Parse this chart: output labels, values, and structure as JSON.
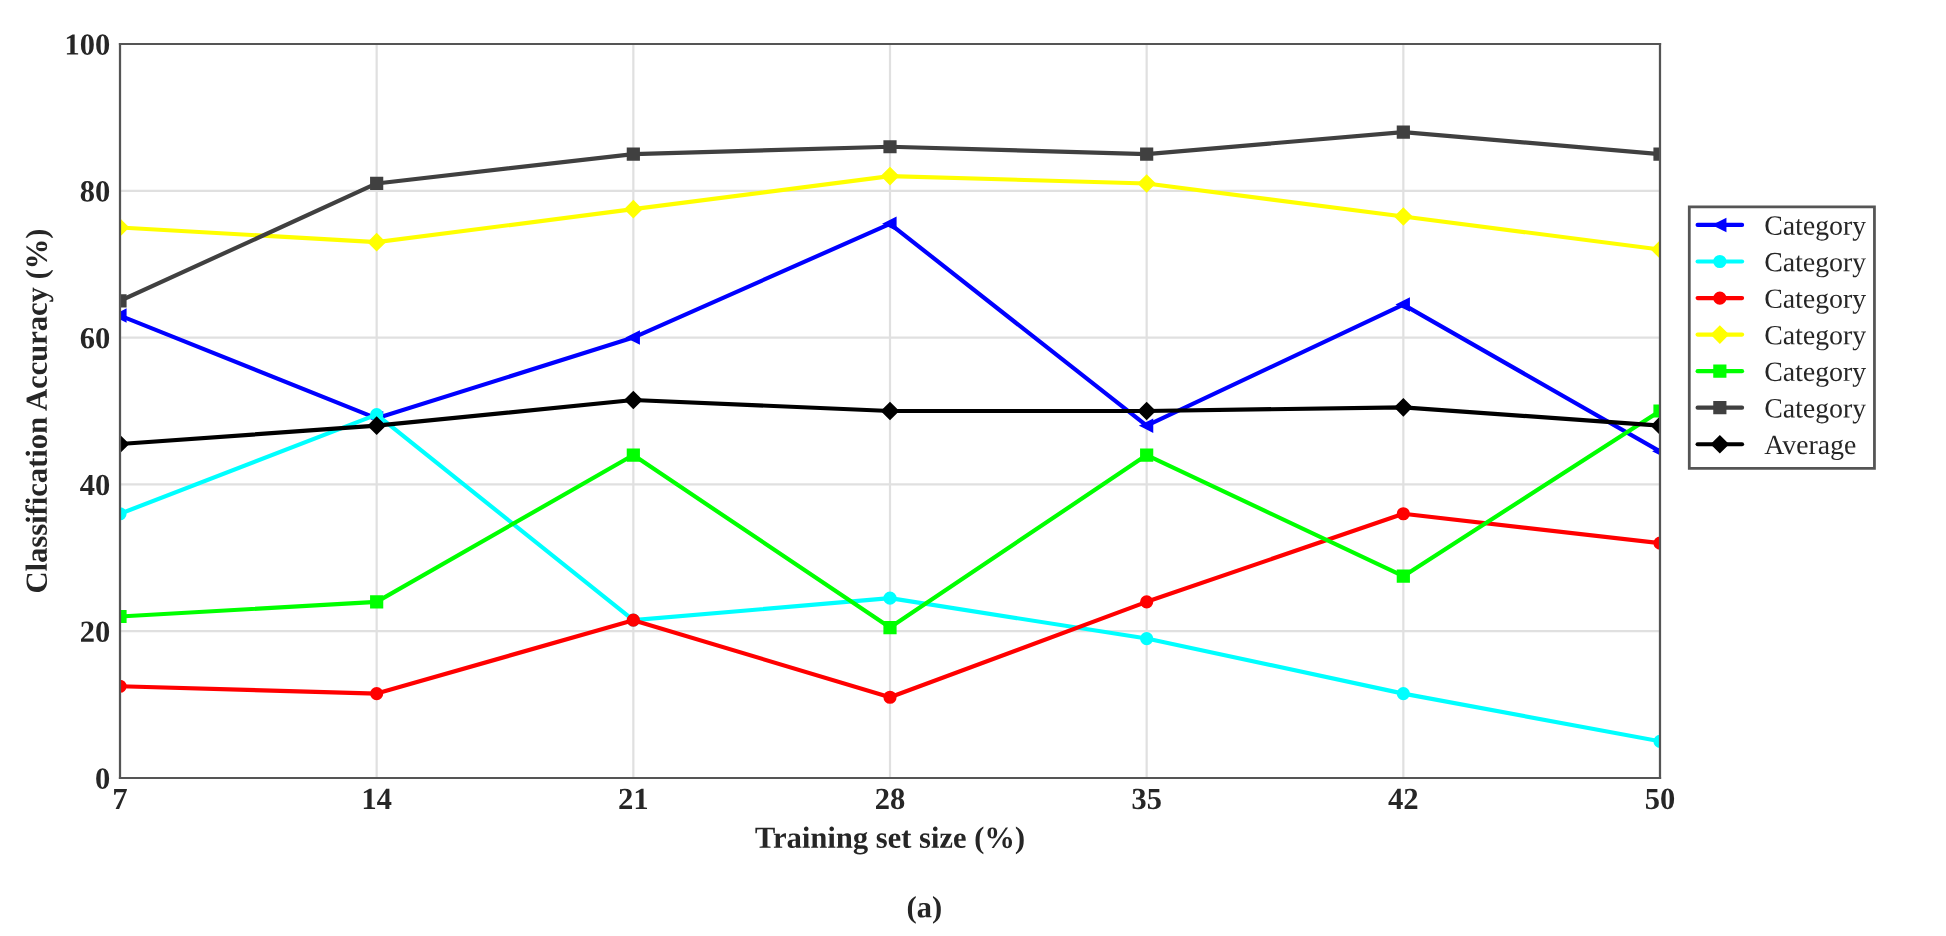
{
  "chart_data": {
    "type": "line",
    "xlabel": "Training set size (%)",
    "ylabel": "Classification Accuracy (%)",
    "categories": [
      "7",
      "14",
      "21",
      "28",
      "35",
      "42",
      "50"
    ],
    "ylim": [
      0,
      100
    ],
    "yticks": [
      0,
      20,
      40,
      60,
      80,
      100
    ],
    "grid": true,
    "legend": "right",
    "series": [
      {
        "name": "Category",
        "color": "#0000ff",
        "marker": "triangle",
        "values": [
          63,
          49,
          60,
          75.5,
          48,
          64.5,
          44.5
        ]
      },
      {
        "name": "Category",
        "color": "#00ffff",
        "marker": "circle",
        "values": [
          36,
          49.5,
          21.5,
          24.5,
          19,
          11.5,
          5
        ]
      },
      {
        "name": "Category",
        "color": "#ff0000",
        "marker": "circle",
        "values": [
          12.5,
          11.5,
          21.5,
          11,
          24,
          36,
          32
        ]
      },
      {
        "name": "Category",
        "color": "#ffff00",
        "marker": "diamond",
        "values": [
          75,
          73,
          77.5,
          82,
          81,
          76.5,
          72
        ]
      },
      {
        "name": "Category",
        "color": "#00ff00",
        "marker": "square",
        "values": [
          22,
          24,
          44,
          20.5,
          44,
          27.5,
          50
        ]
      },
      {
        "name": "Category",
        "color": "#404040",
        "marker": "square",
        "values": [
          65,
          81,
          85,
          86,
          85,
          88,
          85
        ]
      },
      {
        "name": "Average",
        "color": "#000000",
        "marker": "diamond",
        "values": [
          45.5,
          48,
          51.5,
          50,
          50,
          50.5,
          48
        ]
      }
    ],
    "annotations": [
      "(a)"
    ]
  }
}
